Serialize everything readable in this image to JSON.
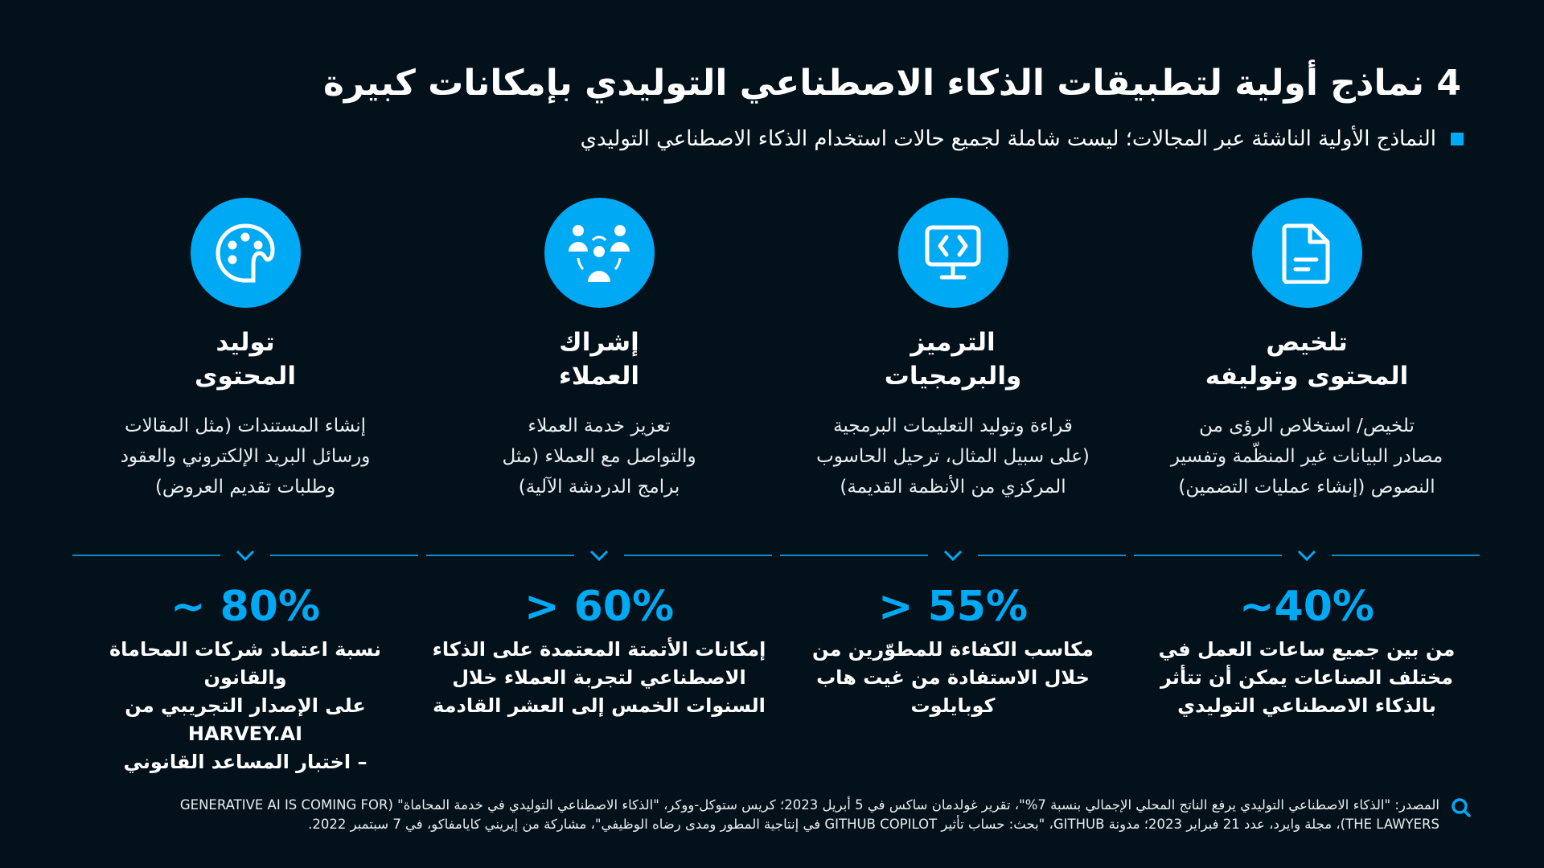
{
  "header": {
    "title": "4  نماذج أولية لتطبيقات الذكاء الاصطناعي التوليدي بإمكانات كبيرة",
    "subtitle": "النماذج الأولية الناشئة عبر المجالات؛ ليست شاملة لجميع حالات استخدام الذكاء الاصطناعي التوليدي"
  },
  "columns": [
    {
      "icon": "document-icon",
      "heading1": "تلخيص",
      "heading2": "المحتوى وتوليفه",
      "desc": [
        "تلخيص/ استخلاص الرؤى من",
        "مصادر البيانات غير المنظّمة وتفسير",
        "النصوص (إنشاء عمليات التضمين)"
      ],
      "pct": "~40%",
      "stat": [
        "من بين جميع ساعات العمل في",
        "مختلف الصناعات يمكن أن تتأثر",
        "بالذكاء الاصطناعي التوليدي"
      ]
    },
    {
      "icon": "code-monitor-icon",
      "heading1": "الترميز",
      "heading2": "والبرمجيات",
      "desc": [
        "قراءة وتوليد التعليمات البرمجية",
        "(على سبيل المثال، ترحيل الحاسوب",
        "المركزي من الأنظمة القديمة)"
      ],
      "pct": "> 55%",
      "stat": [
        "مكاسب الكفاءة للمطوّرين من",
        "خلال الاستفادة من غيت هاب",
        "كوبايلوت"
      ]
    },
    {
      "icon": "customers-icon",
      "heading1": "إشراك",
      "heading2": "العملاء",
      "desc": [
        "تعزيز خدمة العملاء",
        "والتواصل مع العملاء (مثل",
        "برامج الدردشة الآلية)"
      ],
      "pct": "> 60%",
      "stat": [
        "إمكانات الأتمتة المعتمدة على الذكاء",
        "الاصطناعي لتجربة العملاء خلال",
        "السنوات الخمس إلى العشر القادمة"
      ]
    },
    {
      "icon": "palette-icon",
      "heading1": "توليد",
      "heading2": "المحتوى",
      "desc": [
        "إنشاء المستندات (مثل المقالات",
        "ورسائل البريد الإلكتروني والعقود",
        "وطلبات تقديم العروض)"
      ],
      "pct": "~ 80%",
      "stat": [
        "نسبة اعتماد شركات المحاماة والقانون",
        "على الإصدار التجريبي من HARVEY.AI",
        "– اختبار المساعد القانوني"
      ]
    }
  ],
  "footer": {
    "line1": "المصدر: \"الذكاء الاصطناعي التوليدي يرفع الناتج المحلي الإجمالي بنسبة 7%\"، تقرير غولدمان ساكس في 5 أبريل 2023؛ كريس ستوكل-ووكر، \"الذكاء الاصطناعي التوليدي في خدمة المحاماة\" (GENERATIVE AI IS COMING FOR",
    "line2": "THE LAWYERS)، مجلة وايرد، عدد 21 فبراير 2023؛ مدونة GITHUB، \"بحث: حساب تأثير GITHUB COPILOT في إنتاجية المطور ومدى رضاه الوظيفي\"، مشاركة من إيريني كايامفاكو، في 7 سبتمبر 2022."
  },
  "colors": {
    "background": "#03111a",
    "accent": "#00a9f4"
  }
}
